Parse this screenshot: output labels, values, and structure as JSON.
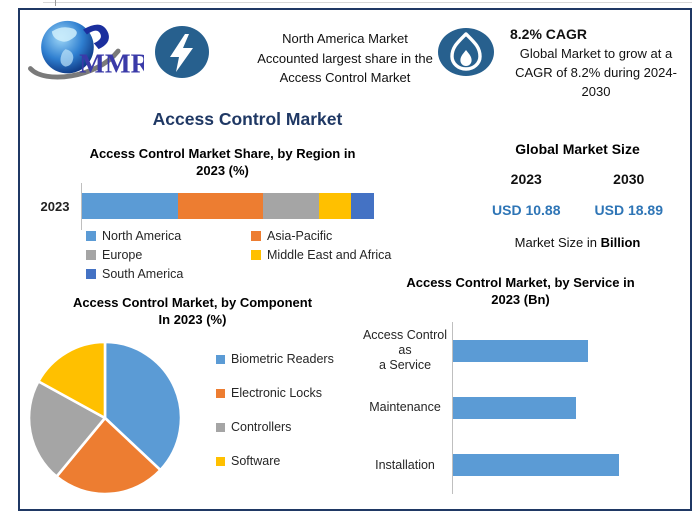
{
  "header": {
    "logo_text": "MMR",
    "banner": {
      "icon": "lightning-icon",
      "text": "North America Market\nAccounted largest share in the\nAccess Control Market"
    },
    "cagr": {
      "icon": "flame-icon",
      "title": "8.2% CAGR",
      "text": "Global Market to grow at a\nCAGR of 8.2% during 2024-\n2030"
    }
  },
  "main_title": "Access Control Market",
  "market_size": {
    "heading": "Global Market Size",
    "year_left": "2023",
    "year_right": "2030",
    "value_left": "USD 10.88",
    "value_right": "USD 18.89",
    "note_prefix": "Market Size in ",
    "note_bold": "Billion"
  },
  "colors": {
    "frame_border": "#1F3864",
    "title_navy": "#1F3864",
    "value_blue": "#2E75B6",
    "icon_circle": "#27608E",
    "bar_blue": "#5B9BD5"
  },
  "chart_data": [
    {
      "type": "bar",
      "subtype": "horizontal-stacked",
      "title": "Access Control Market Share, by Region in\n2023 (%)",
      "category": "2023",
      "unit": "%",
      "series": [
        {
          "name": "North America",
          "value": 33,
          "color": "#5B9BD5"
        },
        {
          "name": "Asia-Pacific",
          "value": 29,
          "color": "#ED7D31"
        },
        {
          "name": "Europe",
          "value": 19,
          "color": "#A5A5A5"
        },
        {
          "name": "Middle East and Africa",
          "value": 11,
          "color": "#FFC000"
        },
        {
          "name": "South America",
          "value": 8,
          "color": "#4472C4"
        }
      ],
      "legend_position": "bottom"
    },
    {
      "type": "pie",
      "title": "Access Control Market, by Component\nIn 2023 (%)",
      "slices": [
        {
          "label": "Biometric Readers",
          "value": 37,
          "color": "#5B9BD5"
        },
        {
          "label": "Electronic Locks",
          "value": 24,
          "color": "#ED7D31"
        },
        {
          "label": "Controllers",
          "value": 22,
          "color": "#A5A5A5"
        },
        {
          "label": "Software",
          "value": 17,
          "color": "#FFC000"
        }
      ],
      "start_angle_deg": 0,
      "direction": "clockwise",
      "legend_position": "right"
    },
    {
      "type": "bar",
      "subtype": "horizontal",
      "title": "Access Control Market, by Service in\n2023 (Bn)",
      "categories": [
        "Access Control as\na Service",
        "Maintenance",
        "Installation"
      ],
      "values": [
        3.5,
        3.2,
        4.3
      ],
      "xlim": [
        0,
        5.45
      ],
      "unit": "Bn",
      "bar_color": "#5B9BD5",
      "grid": false
    }
  ]
}
